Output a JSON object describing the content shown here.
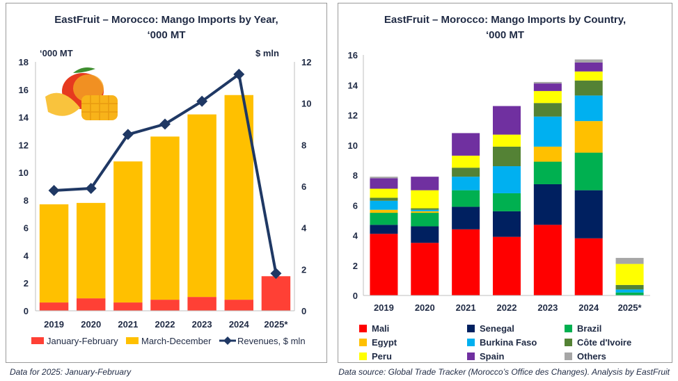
{
  "left_chart": {
    "title_line1": "EastFruit – Morocco: Mango Imports by Year,",
    "title_line2": "‘000 MT",
    "left_axis_unit": "‘000 MT",
    "right_axis_unit": "$ mln"
  },
  "right_chart": {
    "title_line1": "EastFruit – Morocco: Mango Imports by Country,",
    "title_line2": "‘000 MT"
  },
  "footnotes": {
    "left": "Data for 2025: January-February",
    "right": "Data source: Global Trade Tracker (Morocco’s Office des Changes). Analysis by EastFruit"
  },
  "chart_data": [
    {
      "type": "bar",
      "stacked": true,
      "categories": [
        "2019",
        "2020",
        "2021",
        "2022",
        "2023",
        "2024",
        "2025*"
      ],
      "series": [
        {
          "name": "January-February",
          "color": "#ff4035",
          "values": [
            0.6,
            0.9,
            0.6,
            0.8,
            1.0,
            0.8,
            2.5
          ]
        },
        {
          "name": "March-December",
          "color": "#ffc000",
          "values": [
            7.1,
            6.9,
            10.2,
            11.8,
            13.2,
            14.8,
            0
          ]
        }
      ],
      "line_series": {
        "name": "Revenues, $ mln",
        "color": "#1f3864",
        "axis": "right",
        "values": [
          5.8,
          5.9,
          8.5,
          9.0,
          10.1,
          11.4,
          1.8
        ]
      },
      "ylim": [
        0,
        18
      ],
      "yticks": [
        0,
        2,
        4,
        6,
        8,
        10,
        12,
        14,
        16,
        18
      ],
      "y2lim": [
        0,
        12
      ],
      "y2ticks": [
        0,
        2,
        4,
        6,
        8,
        10,
        12
      ],
      "legend": "bottom",
      "grid": false
    },
    {
      "type": "bar",
      "stacked": true,
      "categories": [
        "2019",
        "2020",
        "2021",
        "2022",
        "2023",
        "2024",
        "2025*"
      ],
      "series": [
        {
          "name": "Mali",
          "color": "#ff0000",
          "values": [
            4.1,
            3.5,
            4.4,
            3.9,
            4.7,
            3.8,
            0
          ]
        },
        {
          "name": "Senegal",
          "color": "#002060",
          "values": [
            0.6,
            1.1,
            1.5,
            1.7,
            2.7,
            3.2,
            0
          ]
        },
        {
          "name": "Brazil",
          "color": "#00b050",
          "values": [
            0.8,
            0.9,
            1.1,
            1.2,
            1.5,
            2.5,
            0.2
          ]
        },
        {
          "name": "Egypt",
          "color": "#ffc000",
          "values": [
            0.2,
            0.1,
            0,
            0,
            1.0,
            2.1,
            0
          ]
        },
        {
          "name": "Burkina Faso",
          "color": "#00b0f0",
          "values": [
            0.6,
            0.1,
            0.9,
            1.8,
            2.0,
            1.7,
            0.2
          ]
        },
        {
          "name": "Côte d'Ivoire",
          "color": "#548235",
          "values": [
            0.2,
            0.1,
            0.6,
            1.3,
            0.9,
            1.0,
            0.3
          ]
        },
        {
          "name": "Peru",
          "color": "#ffff00",
          "values": [
            0.6,
            1.2,
            0.8,
            0.8,
            0.8,
            0.6,
            1.4
          ]
        },
        {
          "name": "Spain",
          "color": "#7030a0",
          "values": [
            0.7,
            0.9,
            1.5,
            1.9,
            0.5,
            0.6,
            0
          ]
        },
        {
          "name": "Others",
          "color": "#a6a6a6",
          "values": [
            0.1,
            0,
            0,
            0,
            0.1,
            0.2,
            0.4
          ]
        }
      ],
      "ylim": [
        0,
        16
      ],
      "yticks": [
        0,
        2,
        4,
        6,
        8,
        10,
        12,
        14,
        16
      ],
      "legend": "bottom",
      "grid": false
    }
  ]
}
